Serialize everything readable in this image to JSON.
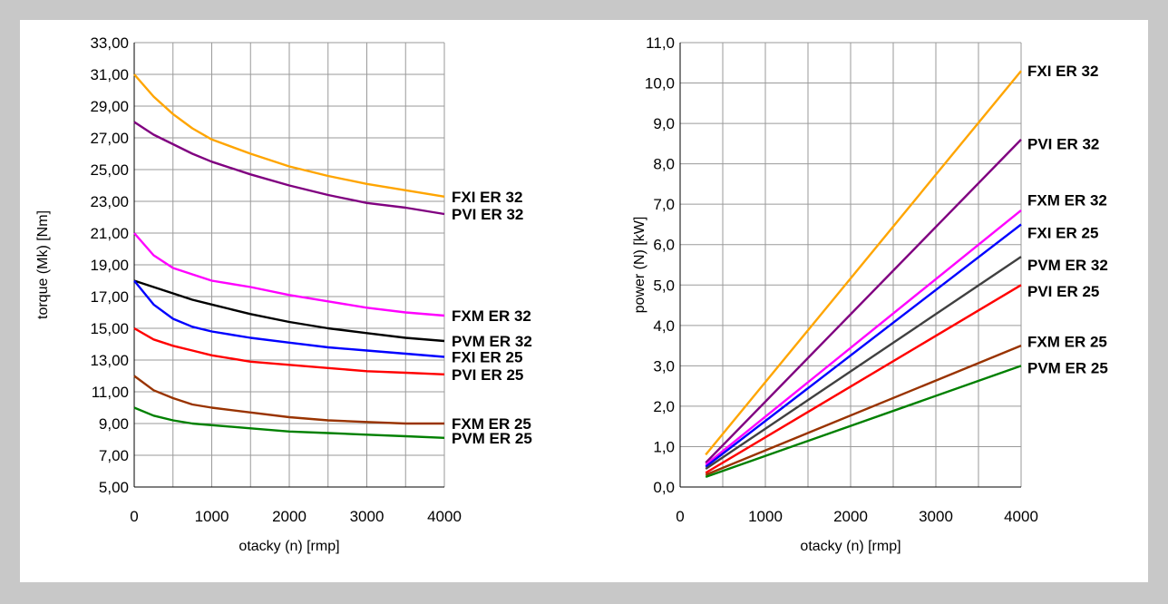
{
  "chart_data": [
    {
      "type": "line",
      "title": "",
      "xlabel": "otacky (n) [rmp]",
      "ylabel": "torque (Mk) [Nm]",
      "xlim": [
        0,
        4000
      ],
      "ylim": [
        5,
        33
      ],
      "x_ticks": [
        "0",
        "1000",
        "2000",
        "3000",
        "4000"
      ],
      "y_ticks": [
        "5,00",
        "7,00",
        "9,00",
        "11,00",
        "13,00",
        "15,00",
        "17,00",
        "19,00",
        "21,00",
        "23,00",
        "25,00",
        "27,00",
        "29,00",
        "31,00",
        "33,00"
      ],
      "grid": true,
      "legend": "direct labels at right end of lines",
      "series": [
        {
          "name": "FXI ER 32",
          "color": "#FFA500",
          "points": [
            [
              0,
              31
            ],
            [
              250,
              29.6
            ],
            [
              500,
              28.5
            ],
            [
              750,
              27.6
            ],
            [
              1000,
              26.9
            ],
            [
              1500,
              26
            ],
            [
              2000,
              25.2
            ],
            [
              2500,
              24.6
            ],
            [
              3000,
              24.1
            ],
            [
              3500,
              23.7
            ],
            [
              4000,
              23.3
            ]
          ]
        },
        {
          "name": "PVI ER 32",
          "color": "#800080",
          "points": [
            [
              0,
              28
            ],
            [
              250,
              27.2
            ],
            [
              500,
              26.6
            ],
            [
              750,
              26
            ],
            [
              1000,
              25.5
            ],
            [
              1500,
              24.7
            ],
            [
              2000,
              24
            ],
            [
              2500,
              23.4
            ],
            [
              3000,
              22.9
            ],
            [
              3500,
              22.6
            ],
            [
              4000,
              22.2
            ]
          ]
        },
        {
          "name": "FXM ER 32",
          "color": "#FF00FF",
          "points": [
            [
              0,
              21
            ],
            [
              250,
              19.6
            ],
            [
              500,
              18.8
            ],
            [
              750,
              18.4
            ],
            [
              1000,
              18
            ],
            [
              1500,
              17.6
            ],
            [
              2000,
              17.1
            ],
            [
              2500,
              16.7
            ],
            [
              3000,
              16.3
            ],
            [
              3500,
              16
            ],
            [
              4000,
              15.8
            ]
          ]
        },
        {
          "name": "PVM ER 32",
          "color": "#000000",
          "points": [
            [
              0,
              18
            ],
            [
              250,
              17.6
            ],
            [
              500,
              17.2
            ],
            [
              750,
              16.8
            ],
            [
              1000,
              16.5
            ],
            [
              1500,
              15.9
            ],
            [
              2000,
              15.4
            ],
            [
              2500,
              15
            ],
            [
              3000,
              14.7
            ],
            [
              3500,
              14.4
            ],
            [
              4000,
              14.2
            ]
          ]
        },
        {
          "name": "FXI ER 25",
          "color": "#0000FF",
          "points": [
            [
              0,
              18
            ],
            [
              250,
              16.5
            ],
            [
              500,
              15.6
            ],
            [
              750,
              15.1
            ],
            [
              1000,
              14.8
            ],
            [
              1500,
              14.4
            ],
            [
              2000,
              14.1
            ],
            [
              2500,
              13.8
            ],
            [
              3000,
              13.6
            ],
            [
              3500,
              13.4
            ],
            [
              4000,
              13.2
            ]
          ]
        },
        {
          "name": "PVI ER 25",
          "color": "#FF0000",
          "points": [
            [
              0,
              15
            ],
            [
              250,
              14.3
            ],
            [
              500,
              13.9
            ],
            [
              750,
              13.6
            ],
            [
              1000,
              13.3
            ],
            [
              1500,
              12.9
            ],
            [
              2000,
              12.7
            ],
            [
              2500,
              12.5
            ],
            [
              3000,
              12.3
            ],
            [
              3500,
              12.2
            ],
            [
              4000,
              12.1
            ]
          ]
        },
        {
          "name": "FXM ER 25",
          "color": "#993300",
          "points": [
            [
              0,
              12
            ],
            [
              250,
              11.1
            ],
            [
              500,
              10.6
            ],
            [
              750,
              10.2
            ],
            [
              1000,
              10
            ],
            [
              1500,
              9.7
            ],
            [
              2000,
              9.4
            ],
            [
              2500,
              9.2
            ],
            [
              3000,
              9.1
            ],
            [
              3500,
              9
            ],
            [
              4000,
              9
            ]
          ]
        },
        {
          "name": "PVM ER 25",
          "color": "#008000",
          "points": [
            [
              0,
              10
            ],
            [
              250,
              9.5
            ],
            [
              500,
              9.2
            ],
            [
              750,
              9
            ],
            [
              1000,
              8.9
            ],
            [
              1500,
              8.7
            ],
            [
              2000,
              8.5
            ],
            [
              2500,
              8.4
            ],
            [
              3000,
              8.3
            ],
            [
              3500,
              8.2
            ],
            [
              4000,
              8.1
            ]
          ]
        }
      ]
    },
    {
      "type": "line",
      "title": "",
      "xlabel": "otacky (n) [rmp]",
      "ylabel": "power (N) [kW]",
      "xlim": [
        0,
        4000
      ],
      "ylim": [
        0,
        11
      ],
      "x_ticks": [
        "0",
        "1000",
        "2000",
        "3000",
        "4000"
      ],
      "y_ticks": [
        "0,0",
        "1,0",
        "2,0",
        "3,0",
        "4,0",
        "5,0",
        "6,0",
        "7,0",
        "8,0",
        "9,0",
        "10,0",
        "11,0"
      ],
      "grid": true,
      "legend": "direct labels at right end of lines",
      "series": [
        {
          "name": "FXI ER 32",
          "color": "#FFA500",
          "label_y": 10.3,
          "points": [
            [
              300,
              0.8
            ],
            [
              4000,
              10.3
            ]
          ]
        },
        {
          "name": "PVI ER 32",
          "color": "#800080",
          "label_y": 8.5,
          "points": [
            [
              300,
              0.6
            ],
            [
              4000,
              8.6
            ]
          ]
        },
        {
          "name": "FXM ER 32",
          "color": "#FF00FF",
          "label_y": 7.1,
          "points": [
            [
              300,
              0.55
            ],
            [
              4000,
              6.85
            ]
          ]
        },
        {
          "name": "FXI ER 25",
          "color": "#0000FF",
          "label_y": 6.3,
          "points": [
            [
              300,
              0.5
            ],
            [
              4000,
              6.5
            ]
          ]
        },
        {
          "name": "PVM ER 32",
          "color": "#404040",
          "label_y": 5.5,
          "points": [
            [
              300,
              0.45
            ],
            [
              4000,
              5.7
            ]
          ]
        },
        {
          "name": "PVI ER 25",
          "color": "#FF0000",
          "label_y": 4.85,
          "points": [
            [
              300,
              0.35
            ],
            [
              4000,
              5
            ]
          ]
        },
        {
          "name": "FXM ER 25",
          "color": "#993300",
          "label_y": 3.6,
          "points": [
            [
              300,
              0.3
            ],
            [
              4000,
              3.5
            ]
          ]
        },
        {
          "name": "PVM ER 25",
          "color": "#008000",
          "label_y": 2.95,
          "points": [
            [
              300,
              0.25
            ],
            [
              4000,
              3
            ]
          ]
        }
      ]
    }
  ]
}
